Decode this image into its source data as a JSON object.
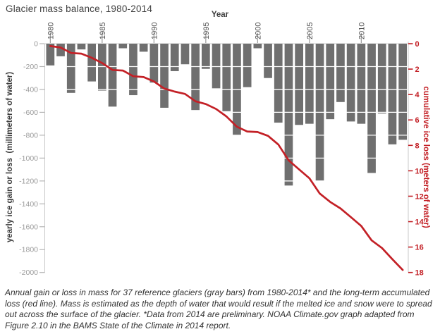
{
  "title": "Glacier mass balance, 1980-2014",
  "caption": "Annual gain or loss in mass for 37 reference glaciers (gray bars) from 1980-2014* and the long-term accumulated loss (red line). Mass is estimated as the depth of water that would result if the melted ice and snow were to spread out across the surface of the glacier. *Data from 2014 are preliminary. NOAA Climate.gov graph adapted from Figure 2.10 in the BAMS State of the Climate in 2014 report.",
  "chart_data": {
    "type": "bar",
    "title": "Glacier mass balance, 1980-2014",
    "xlabel": "Year",
    "ylabel_left": "yearly ice gain or loss  (millimeters of water)",
    "ylabel_right": "cumulative ice loss (meters of water)",
    "x": [
      1980,
      1981,
      1982,
      1983,
      1984,
      1985,
      1986,
      1987,
      1988,
      1989,
      1990,
      1991,
      1992,
      1993,
      1994,
      1995,
      1996,
      1997,
      1998,
      1999,
      2000,
      2001,
      2002,
      2003,
      2004,
      2005,
      2006,
      2007,
      2008,
      2009,
      2010,
      2011,
      2012,
      2013,
      2014
    ],
    "series": [
      {
        "name": "yearly ice gain or loss (gray bars, mm of water)",
        "type": "bar",
        "axis": "left",
        "values": [
          -190,
          -110,
          -430,
          -50,
          -330,
          -410,
          -550,
          -40,
          -450,
          -70,
          -340,
          -560,
          -240,
          -180,
          -580,
          -220,
          -390,
          -590,
          -800,
          -380,
          -40,
          -300,
          -690,
          -1240,
          -710,
          -700,
          -1200,
          -660,
          -510,
          -680,
          -700,
          -1130,
          -610,
          -880,
          -840
        ]
      },
      {
        "name": "cumulative ice loss (red line, meters of water)",
        "type": "line",
        "axis": "right",
        "values": [
          -0.19,
          -0.3,
          -0.73,
          -0.78,
          -1.11,
          -1.52,
          -2.07,
          -2.11,
          -2.56,
          -2.63,
          -2.97,
          -3.53,
          -3.77,
          -3.95,
          -4.53,
          -4.75,
          -5.14,
          -5.73,
          -6.53,
          -6.91,
          -6.95,
          -7.25,
          -7.94,
          -9.18,
          -9.89,
          -10.59,
          -11.79,
          -12.45,
          -12.96,
          -13.64,
          -14.34,
          -15.47,
          -16.08,
          -16.96,
          -17.8
        ]
      }
    ],
    "left_axis": {
      "ylim": [
        -2000,
        0
      ],
      "ticks": [
        0,
        -200,
        -400,
        -600,
        -800,
        -1000,
        -1200,
        -1400,
        -1600,
        -1800,
        -2000
      ]
    },
    "right_axis": {
      "ylim": [
        -18,
        0
      ],
      "tick_labels_shown": [
        0,
        2,
        4,
        6,
        8,
        10,
        12,
        14,
        16,
        18
      ]
    },
    "x_ticks": [
      1980,
      1985,
      1990,
      1995,
      2000,
      2005,
      2010
    ],
    "legend": "none",
    "grid": "white gridlines visible only across bars"
  },
  "colors": {
    "bar": "#6f6f6f",
    "line": "#c32026",
    "axis": "#c9c9c9",
    "left_tick_text": "#9b9b9b",
    "year_tick_text": "#4f4f4f",
    "heading_text": "#3d3d3d"
  }
}
